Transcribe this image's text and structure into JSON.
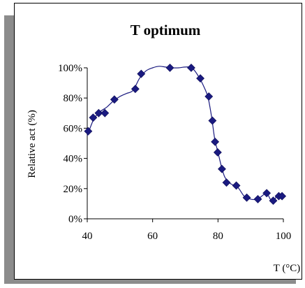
{
  "chart_data": {
    "type": "line",
    "title": "T optimum",
    "xlabel": "T (°C)",
    "ylabel": "Relative act (%)",
    "xlim": [
      40,
      100
    ],
    "ylim": [
      0,
      100
    ],
    "x_ticks": [
      40,
      60,
      80,
      100
    ],
    "y_ticks": [
      0,
      20,
      40,
      60,
      80,
      100
    ],
    "y_tick_labels": [
      "0%",
      "20%",
      "40%",
      "60%",
      "80%",
      "100%"
    ],
    "marker_color": "#1a1a80",
    "line_color": "#1a1a80",
    "series": [
      {
        "x": [
          40.3,
          41.8,
          43.5,
          45.4,
          48.3,
          54.7,
          56.5,
          65.3,
          71.8,
          74.6,
          77.2,
          78.3,
          79.1,
          79.9,
          81.2,
          82.6,
          85.6,
          88.8,
          92.2,
          94.9,
          96.9,
          98.6,
          99.6
        ],
        "y": [
          58,
          67,
          70,
          70,
          79,
          86,
          96,
          100,
          100,
          93,
          81,
          65,
          51,
          44,
          33,
          24,
          22,
          14,
          13,
          17,
          12,
          15,
          15
        ]
      }
    ],
    "smooth_curve": [
      [
        40,
        55
      ],
      [
        42,
        66
      ],
      [
        44,
        71
      ],
      [
        46,
        74
      ],
      [
        48,
        78
      ],
      [
        50,
        81
      ],
      [
        52,
        83
      ],
      [
        54,
        85
      ],
      [
        56,
        93
      ],
      [
        58,
        98
      ],
      [
        60,
        100
      ],
      [
        62,
        101
      ],
      [
        64,
        100.5
      ],
      [
        66,
        100
      ],
      [
        68,
        100
      ],
      [
        70,
        100.5
      ],
      [
        72,
        100
      ],
      [
        74,
        94.5
      ],
      [
        76,
        86
      ],
      [
        77,
        80
      ],
      [
        78,
        68
      ],
      [
        79,
        53
      ],
      [
        80,
        44
      ],
      [
        81,
        35
      ],
      [
        82,
        28
      ],
      [
        83,
        25
      ],
      [
        84,
        23
      ],
      [
        86,
        21
      ],
      [
        88,
        15
      ],
      [
        90,
        13
      ],
      [
        92,
        13
      ],
      [
        94,
        16
      ],
      [
        95,
        17
      ],
      [
        96,
        13
      ],
      [
        97,
        12
      ],
      [
        98,
        15
      ],
      [
        99,
        16
      ],
      [
        100,
        15.5
      ]
    ]
  }
}
